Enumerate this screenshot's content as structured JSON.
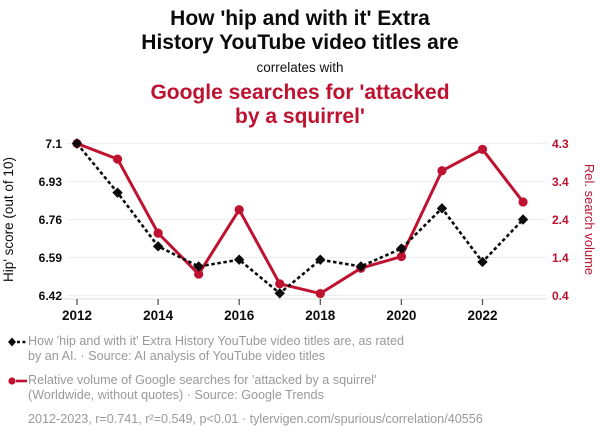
{
  "title": {
    "black_lines": [
      "How 'hip and with it' Extra",
      "History YouTube video titles are"
    ],
    "connector": "correlates with",
    "red_lines": [
      "Google searches for 'attacked",
      "by a squirrel'"
    ]
  },
  "colors": {
    "accent_red": "#BE1230",
    "title_black": "#0b0b0b",
    "legend_gray": "#999999",
    "gridline": "#eeeeee",
    "axis_line": "#dddddd",
    "tick_mark": "#555555"
  },
  "icons": {
    "hip_marker": "black-diamond-with-dashed-line",
    "search_marker": "red-circle-with-solid-line"
  },
  "chart_data": {
    "type": "line",
    "x": [
      2012,
      2013,
      2014,
      2015,
      2016,
      2017,
      2018,
      2019,
      2020,
      2021,
      2022,
      2023
    ],
    "x_tick_labels": [
      "2012",
      "2014",
      "2016",
      "2018",
      "2020",
      "2022"
    ],
    "grid": "horizontal-only",
    "series": [
      {
        "name": "search-volume",
        "label": "Relative volume of Google searches for 'attacked by a squirrel'",
        "axis": "right",
        "color": "#BE1230",
        "style": "solid",
        "marker": "circle",
        "values": [
          4.3,
          3.9,
          2.0,
          0.95,
          2.6,
          0.7,
          0.45,
          1.1,
          1.4,
          3.6,
          4.15,
          2.8
        ]
      },
      {
        "name": "hip-score",
        "label": "How 'hip and with it' Extra History YouTube video titles are",
        "axis": "left",
        "color": "#0b0b0b",
        "style": "dashed",
        "marker": "diamond",
        "values": [
          7.1,
          6.88,
          6.64,
          6.55,
          6.58,
          6.43,
          6.58,
          6.55,
          6.63,
          6.81,
          6.57,
          6.76
        ]
      }
    ],
    "left_axis": {
      "label": "Hip' score (out of 10)",
      "ticks": [
        "7.1",
        "6.93",
        "6.76",
        "6.59",
        "6.42"
      ],
      "min": 6.42,
      "max": 7.1
    },
    "right_axis": {
      "label": "Rel. search volume",
      "ticks": [
        "4.3",
        "3.4",
        "2.4",
        "1.4",
        "0.4"
      ],
      "min": 0.4,
      "max": 4.3
    }
  },
  "legend": {
    "items": [
      {
        "lines": [
          "How 'hip and with it' Extra History YouTube video titles are, as rated",
          "by an AI. · Source: AI analysis of YouTube video titles"
        ]
      },
      {
        "lines": [
          "Relative volume of Google searches for 'attacked by a squirrel'",
          "(Worldwide, without quotes) · Source: Google Trends"
        ]
      }
    ]
  },
  "footer": {
    "text": "2012-2023, r=0.741, r²=0.549, p<0.01 · tylervigen.com/spurious/correlation/40556"
  }
}
